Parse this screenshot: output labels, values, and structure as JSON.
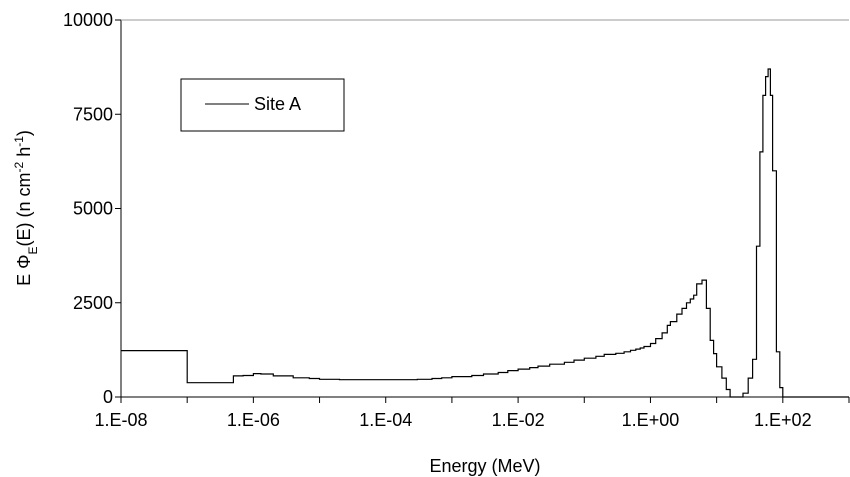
{
  "chart_data": {
    "type": "line",
    "step": true,
    "xscale": "log",
    "xlabel": "Energy (MeV)",
    "ylabel_parts": [
      "E Φ",
      "E",
      "(E)  (n cm",
      "-2",
      " h",
      "-1",
      ")"
    ],
    "xlim": [
      "1.E-08",
      "1.E+03"
    ],
    "ylim": [
      0,
      10000
    ],
    "x_ticks": [
      "1.E-08",
      "1.E-06",
      "1.E-04",
      "1.E-02",
      "1.E+00",
      "1.E+02"
    ],
    "y_ticks": [
      "0",
      "2500",
      "5000",
      "7500",
      "10000"
    ],
    "grid": false,
    "legend_position": "top-left",
    "series": [
      {
        "name": "Site A",
        "color": "#000000",
        "x": [
          "1.E-08",
          "1.E-07",
          "3.E-07",
          "5.E-07",
          "7.E-07",
          "1.E-06",
          "1.3E-06",
          "2.E-06",
          "4.E-06",
          "7.E-06",
          "1.E-05",
          "2.E-05",
          "3.E-05",
          "5.E-05",
          "7.E-05",
          "1.E-04",
          "1.5E-04",
          "2.E-04",
          "3.E-04",
          "5.E-04",
          "7.E-04",
          "1.E-03",
          "2.E-03",
          "3.E-03",
          "5.E-03",
          "7.E-03",
          "1.E-02",
          "1.5E-02",
          "2.E-02",
          "3.E-02",
          "5.E-02",
          "7.E-02",
          "1.E-01",
          "1.5E-01",
          "2.E-01",
          "3.E-01",
          "4.E-01",
          "5.E-01",
          "6.E-01",
          "7.E-01",
          "8.E-01",
          "1.E+00",
          "1.2E+00",
          "1.5E+00",
          "1.8E+00",
          "2.E+00",
          "2.5E+00",
          "3.E+00",
          "3.5E+00",
          "4.E+00",
          "4.5E+00",
          "5.E+00",
          "6.E+00",
          "7.E+00",
          "8.E+00",
          "9.E+00",
          "1.E+01",
          "1.2E+01",
          "1.4E+01",
          "1.6E+01",
          "1.8E+01",
          "2.E+01",
          "2.5E+01",
          "3.E+01",
          "3.5E+01",
          "4.E+01",
          "4.5E+01",
          "5.E+01",
          "5.5E+01",
          "6.E+01",
          "6.5E+01",
          "7.E+01",
          "8.E+01",
          "9.E+01",
          "1.E+02",
          "1.2E+02",
          "1.E+03"
        ],
        "y": [
          1230,
          380,
          380,
          560,
          570,
          620,
          610,
          560,
          510,
          490,
          470,
          460,
          460,
          460,
          460,
          460,
          460,
          460,
          470,
          490,
          510,
          540,
          570,
          610,
          650,
          700,
          740,
          780,
          820,
          870,
          920,
          980,
          1030,
          1080,
          1130,
          1160,
          1200,
          1240,
          1270,
          1300,
          1340,
          1420,
          1550,
          1700,
          1900,
          2000,
          2200,
          2350,
          2500,
          2600,
          2700,
          3000,
          3100,
          2350,
          1500,
          1150,
          800,
          500,
          200,
          0,
          0,
          0,
          100,
          500,
          1000,
          4000,
          6500,
          8000,
          8500,
          8700,
          8000,
          6000,
          1200,
          250,
          0,
          0,
          0
        ]
      }
    ]
  }
}
